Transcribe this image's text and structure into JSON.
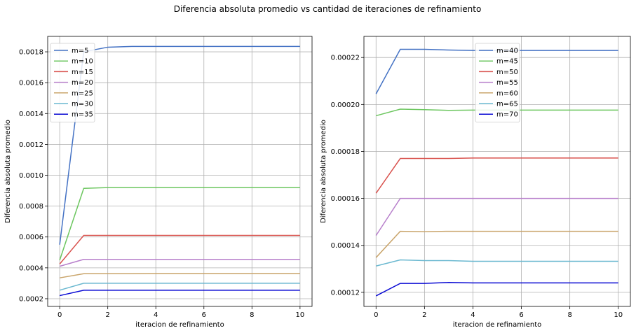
{
  "title": "Diferencia absoluta promedio vs cantidad de iteraciones de refinamiento",
  "chart_data": [
    {
      "type": "line",
      "xlabel": "iteracion de refinamiento",
      "ylabel": "Diferencia absoluta promedio",
      "xlim": [
        -0.5,
        10.5
      ],
      "ylim": [
        0.00015,
        0.0019
      ],
      "xticks": [
        0,
        2,
        4,
        6,
        8,
        10
      ],
      "yticks": [
        0.0002,
        0.0004,
        0.0006,
        0.0008,
        0.001,
        0.0012,
        0.0014,
        0.0016,
        0.0018
      ],
      "ytick_labels": [
        "0.0002",
        "0.0004",
        "0.0006",
        "0.0008",
        "0.0010",
        "0.0012",
        "0.0014",
        "0.0016",
        "0.0018"
      ],
      "xtick_labels": [
        "0",
        "2",
        "4",
        "6",
        "8",
        "10"
      ],
      "grid": true,
      "legend_position": "top-left",
      "x": [
        0,
        1,
        2,
        3,
        4,
        5,
        6,
        7,
        8,
        9,
        10
      ],
      "series": [
        {
          "name": "m=5",
          "color": "#4472c4",
          "values": [
            0.00055,
            0.0018,
            0.00183,
            0.001835,
            0.001835,
            0.001835,
            0.001835,
            0.001835,
            0.001835,
            0.001835,
            0.001835
          ]
        },
        {
          "name": "m=10",
          "color": "#6cc65f",
          "values": [
            0.00045,
            0.000915,
            0.00092,
            0.00092,
            0.00092,
            0.00092,
            0.00092,
            0.00092,
            0.00092,
            0.00092,
            0.00092
          ]
        },
        {
          "name": "m=15",
          "color": "#d9534f",
          "values": [
            0.000425,
            0.00061,
            0.00061,
            0.00061,
            0.00061,
            0.00061,
            0.00061,
            0.00061,
            0.00061,
            0.00061,
            0.00061
          ]
        },
        {
          "name": "m=20",
          "color": "#b77fcb",
          "values": [
            0.00041,
            0.000455,
            0.000455,
            0.000455,
            0.000455,
            0.000455,
            0.000455,
            0.000455,
            0.000455,
            0.000455,
            0.000455
          ]
        },
        {
          "name": "m=25",
          "color": "#c9a46a",
          "values": [
            0.000335,
            0.000362,
            0.000362,
            0.000362,
            0.000363,
            0.000363,
            0.000363,
            0.000363,
            0.000363,
            0.000363,
            0.000363
          ]
        },
        {
          "name": "m=30",
          "color": "#6ab8d0",
          "values": [
            0.000255,
            0.0003,
            0.0003,
            0.0003,
            0.0003,
            0.0003,
            0.0003,
            0.0003,
            0.0003,
            0.0003,
            0.0003
          ]
        },
        {
          "name": "m=35",
          "color": "#0a0ad4",
          "values": [
            0.00022,
            0.000255,
            0.000255,
            0.000255,
            0.000255,
            0.000255,
            0.000255,
            0.000255,
            0.000255,
            0.000255,
            0.000255
          ]
        }
      ]
    },
    {
      "type": "line",
      "xlabel": "iteracion de refinamiento",
      "ylabel": "Diferencia absoluta promedio",
      "xlim": [
        -0.5,
        10.5
      ],
      "ylim": [
        0.000114,
        0.000229
      ],
      "xticks": [
        0,
        2,
        4,
        6,
        8,
        10
      ],
      "yticks": [
        0.00012,
        0.00014,
        0.00016,
        0.00018,
        0.0002,
        0.00022
      ],
      "ytick_labels": [
        "0.00012",
        "0.00014",
        "0.00016",
        "0.00018",
        "0.00020",
        "0.00022"
      ],
      "xtick_labels": [
        "0",
        "2",
        "4",
        "6",
        "8",
        "10"
      ],
      "grid": true,
      "legend_position": "top-center",
      "x": [
        0,
        1,
        2,
        3,
        4,
        5,
        6,
        7,
        8,
        9,
        10
      ],
      "series": [
        {
          "name": "m=40",
          "color": "#4472c4",
          "values": [
            0.0002045,
            0.0002235,
            0.0002235,
            0.0002232,
            0.000223,
            0.000223,
            0.000223,
            0.000223,
            0.000223,
            0.000223,
            0.000223
          ]
        },
        {
          "name": "m=45",
          "color": "#6cc65f",
          "values": [
            0.0001952,
            0.000198,
            0.0001978,
            0.0001975,
            0.0001976,
            0.0001976,
            0.0001976,
            0.0001976,
            0.0001976,
            0.0001976,
            0.0001976
          ]
        },
        {
          "name": "m=50",
          "color": "#d9534f",
          "values": [
            0.0001622,
            0.000177,
            0.000177,
            0.000177,
            0.0001772,
            0.0001772,
            0.0001772,
            0.0001772,
            0.0001772,
            0.0001772,
            0.0001772
          ]
        },
        {
          "name": "m=55",
          "color": "#b77fcb",
          "values": [
            0.0001442,
            0.00016,
            0.00016,
            0.00016,
            0.00016,
            0.00016,
            0.00016,
            0.00016,
            0.00016,
            0.00016,
            0.00016
          ]
        },
        {
          "name": "m=60",
          "color": "#c9a46a",
          "values": [
            0.0001348,
            0.000146,
            0.0001458,
            0.000146,
            0.000146,
            0.000146,
            0.000146,
            0.000146,
            0.000146,
            0.000146,
            0.000146
          ]
        },
        {
          "name": "m=65",
          "color": "#6ab8d0",
          "values": [
            0.0001312,
            0.0001338,
            0.0001335,
            0.0001335,
            0.0001332,
            0.0001332,
            0.0001332,
            0.0001332,
            0.0001332,
            0.0001332,
            0.0001332
          ]
        },
        {
          "name": "m=70",
          "color": "#0a0ad4",
          "values": [
            0.0001185,
            0.0001238,
            0.0001238,
            0.0001242,
            0.000124,
            0.000124,
            0.000124,
            0.000124,
            0.000124,
            0.000124,
            0.000124
          ]
        }
      ]
    }
  ]
}
